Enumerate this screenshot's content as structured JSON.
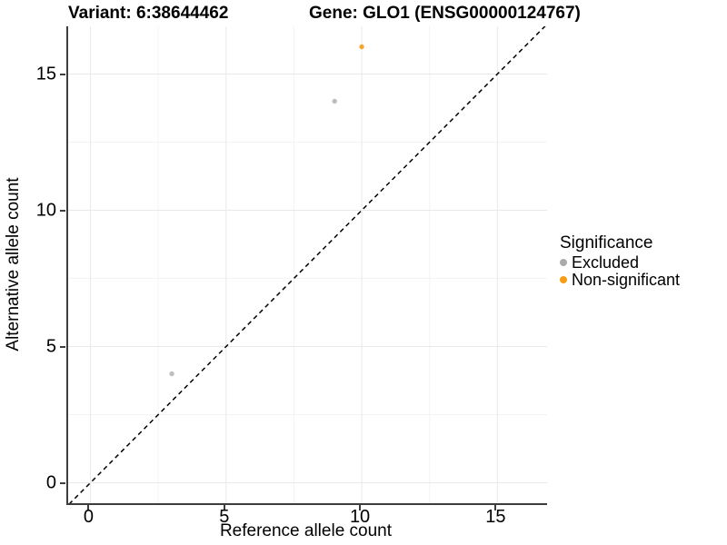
{
  "header": {
    "variant_title": "Variant: 6:38644462",
    "gene_title": "Gene: GLO1 (ENSG00000124767)"
  },
  "chart_data": {
    "type": "scatter",
    "xlabel": "Reference allele count",
    "ylabel": "Alternative allele count",
    "xlim": [
      -0.82,
      16.83
    ],
    "ylim": [
      -0.75,
      16.75
    ],
    "x_ticks": [
      0,
      5,
      10,
      15
    ],
    "y_ticks": [
      0,
      5,
      10,
      15
    ],
    "x_minor_ticks": [
      2.5,
      7.5,
      12.5
    ],
    "y_minor_ticks": [
      2.5,
      7.5,
      12.5
    ],
    "grid": "major and minor, faint gray on white",
    "reference_line": {
      "type": "identity y=x",
      "style": "dashed",
      "color": "#000000"
    },
    "series": [
      {
        "name": "Excluded",
        "color": "#BDBDBD",
        "points": [
          {
            "x": 3,
            "y": 4
          },
          {
            "x": 9,
            "y": 14
          }
        ]
      },
      {
        "name": "Non-significant",
        "color": "#F7A630",
        "points": [
          {
            "x": 10,
            "y": 16
          }
        ]
      }
    ],
    "legend": {
      "title": "Significance",
      "position": "right",
      "entries": [
        {
          "label": "Excluded",
          "color": "#ABABAB"
        },
        {
          "label": "Non-significant",
          "color": "#F79C13"
        }
      ]
    },
    "colors": {
      "grid_major": "#E9E9E9",
      "grid_minor": "#F3F3F3",
      "axis_line": "#3D3D3D"
    }
  }
}
